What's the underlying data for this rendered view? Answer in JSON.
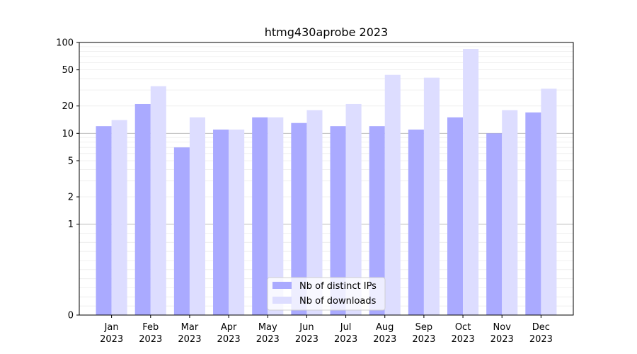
{
  "chart_data": {
    "type": "bar",
    "title": "htmg430aprobe 2023",
    "xlabel": "",
    "ylabel": "",
    "yscale": "symlog",
    "ylim": [
      0,
      100
    ],
    "yticks": [
      0,
      1,
      2,
      5,
      10,
      20,
      50,
      100
    ],
    "grid": "y",
    "legend_position": "lower center",
    "categories": [
      [
        "Jan",
        "2023"
      ],
      [
        "Feb",
        "2023"
      ],
      [
        "Mar",
        "2023"
      ],
      [
        "Apr",
        "2023"
      ],
      [
        "May",
        "2023"
      ],
      [
        "Jun",
        "2023"
      ],
      [
        "Jul",
        "2023"
      ],
      [
        "Aug",
        "2023"
      ],
      [
        "Sep",
        "2023"
      ],
      [
        "Oct",
        "2023"
      ],
      [
        "Nov",
        "2023"
      ],
      [
        "Dec",
        "2023"
      ]
    ],
    "series": [
      {
        "name": "Nb of distinct IPs",
        "color": "#aaaaff",
        "values": [
          12,
          21,
          7,
          11,
          15,
          13,
          12,
          12,
          11,
          15,
          10,
          17
        ]
      },
      {
        "name": "Nb of downloads",
        "color": "#ddddff",
        "values": [
          14,
          33,
          15,
          11,
          15,
          18,
          21,
          44,
          41,
          85,
          18,
          31
        ]
      }
    ]
  }
}
